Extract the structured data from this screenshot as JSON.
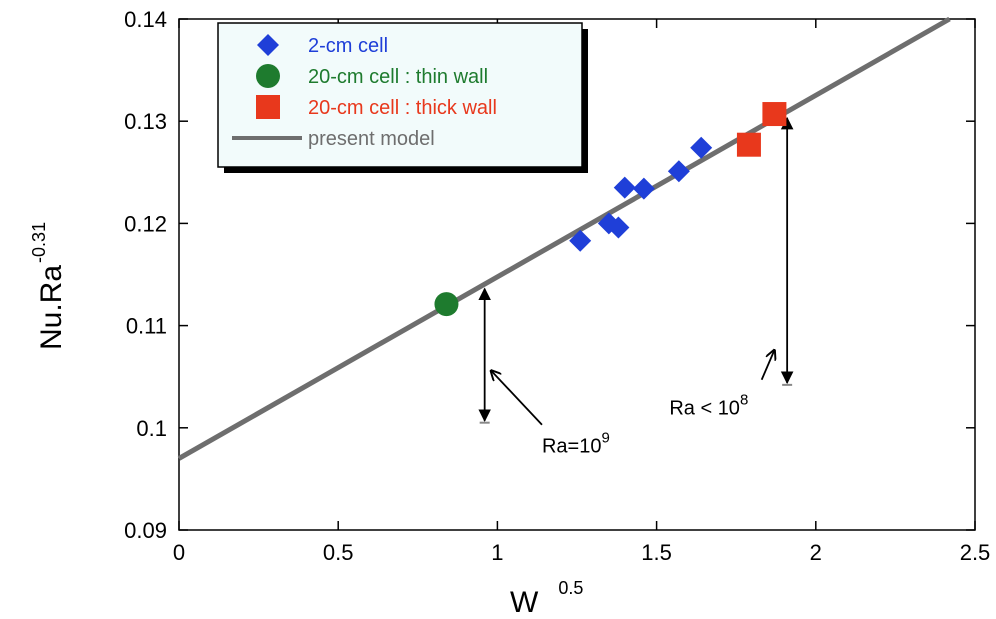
{
  "chart_data": {
    "type": "scatter",
    "xlabel": {
      "base": "W",
      "sup": "0.5"
    },
    "ylabel": {
      "base": "Nu.Ra",
      "sup": "-0.31"
    },
    "xlim": [
      0,
      2.5
    ],
    "ylim": [
      0.09,
      0.14
    ],
    "x_ticks": [
      "0",
      "0.5",
      "1",
      "1.5",
      "2",
      "2.5"
    ],
    "y_ticks": [
      "0.09",
      "0.1",
      "0.11",
      "0.12",
      "0.13",
      "0.14"
    ],
    "grid": false,
    "legend_position": "top-left",
    "series": [
      {
        "name": "2-cm cell",
        "marker": "diamond",
        "color": "#1f3fd8",
        "points": [
          {
            "x": 1.26,
            "y": 0.1183
          },
          {
            "x": 1.35,
            "y": 0.12
          },
          {
            "x": 1.38,
            "y": 0.1196
          },
          {
            "x": 1.4,
            "y": 0.1235
          },
          {
            "x": 1.46,
            "y": 0.1234
          },
          {
            "x": 1.57,
            "y": 0.1251
          },
          {
            "x": 1.64,
            "y": 0.1274
          }
        ]
      },
      {
        "name": "20-cm cell : thin wall",
        "marker": "circle",
        "color": "#1e7b2e",
        "points": [
          {
            "x": 0.84,
            "y": 0.1121
          }
        ]
      },
      {
        "name": "20-cm cell : thick wall",
        "marker": "square",
        "color": "#e8381c",
        "points": [
          {
            "x": 1.79,
            "y": 0.1277
          },
          {
            "x": 1.87,
            "y": 0.1307
          }
        ]
      },
      {
        "name": "present model",
        "marker": "line",
        "color": "#6e6e6e",
        "points": [
          {
            "x": 0,
            "y": 0.097
          },
          {
            "x": 2.42,
            "y": 0.14
          }
        ]
      }
    ],
    "annotations": [
      {
        "label_base": "Ra=10",
        "label_sup": "9",
        "arrow_x": 0.96,
        "arrow_y_top": 0.1138,
        "arrow_y_bottom": 0.1005,
        "pointer_from": {
          "x": 1.14,
          "y": 0.1003
        },
        "pointer_to": {
          "x": 0.98,
          "y": 0.1056
        },
        "text_at": {
          "x": 1.14,
          "y": 0.0976
        }
      },
      {
        "label_base": "Ra < 10",
        "label_sup": "8",
        "arrow_x": 1.91,
        "arrow_y_top": 0.1305,
        "arrow_y_bottom": 0.1042,
        "pointer_from": {
          "x": 1.83,
          "y": 0.1047
        },
        "pointer_to": {
          "x": 1.87,
          "y": 0.1076
        },
        "text_at": {
          "x": 1.54,
          "y": 0.1013
        }
      }
    ]
  }
}
